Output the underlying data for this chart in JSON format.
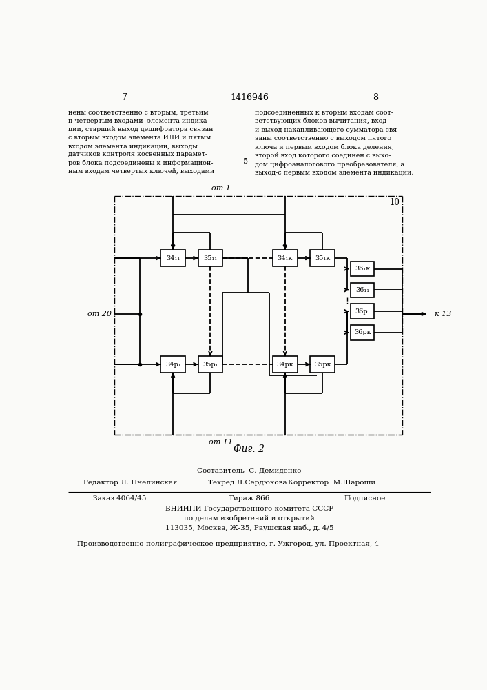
{
  "page_left": "7",
  "page_center": "1416946",
  "page_right": "8",
  "text_left": "нены соответственно с вторым, третьим\nп четвертым входами  элемента индика-\nции, старший выход дешифратора связан\nс вторым входом элемента ИЛИ и пятым\nвходом элемента индикации, выходы\nдатчиков контроля косвенных парамет-\nров блока подсоединены к информацион-\nным входам четвертых ключей, выходами",
  "text_right": "подсоединенных к вторым входам соот-\nветствующих блоков вычитания, вход\nи выход накапливающего сумматора свя-\nзаны соответственно с выходом пятого\nключа и первым входом блока деления,\nвторой вход которого соединен с выхо-\nдом цифроаналогового преобразователя, а\nвыход-с первым входом элемента индикации.",
  "line_num": "5",
  "lbl_top": "от 1",
  "lbl_left": "от 20",
  "lbl_bottom": "от 11",
  "lbl_num": "10",
  "lbl_right_arrow": "к 13",
  "fig_caption": "Фиг. 2",
  "footer1": "Составитель  С. Демиденко",
  "footer2l": "Редактор Л. Пчелинская",
  "footer2c": "Техред Л.Сердюкова",
  "footer2r": "Корректор  М.Шароши",
  "footer3a": "Заказ 4064/45",
  "footer3b": "Тираж 866",
  "footer3c": "Подписное",
  "footer4": "ВНИИПИ Государственного комитета СССР",
  "footer5": "по делам изобретений и открытий",
  "footer6": "113035, Москва, Ж-35, Раушская наб., д. 4/5",
  "footer7": "Производственно-полиграфическое предприятие, г. Ужгород, ул. Проектная, 4",
  "bg": "#fafaf8",
  "lbl_34_11": "34₁₁",
  "lbl_35_11": "35₁₁",
  "lbl_34_1k": "34₁к",
  "lbl_35_1k": "35₁к",
  "lbl_34_p1": "34р₁",
  "lbl_35_p1": "35р₁",
  "lbl_34_pk": "34рк",
  "lbl_35_pk": "35рк",
  "lbl_36_1k": "36₁к",
  "lbl_36_11": "36₁₁",
  "lbl_36_p1": "36р₁",
  "lbl_36_pk": "36рк"
}
